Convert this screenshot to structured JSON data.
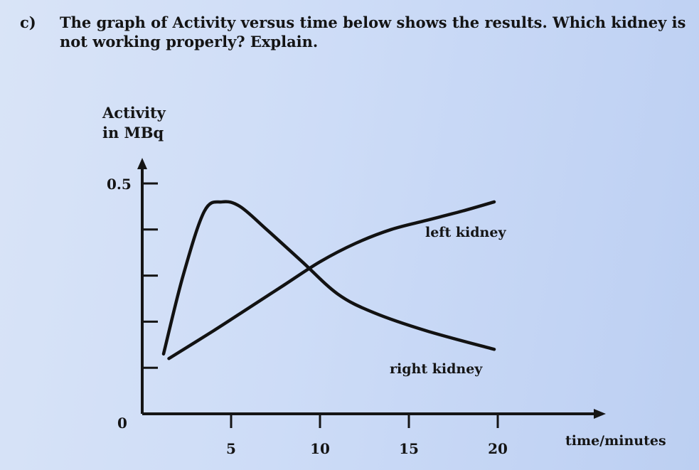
{
  "question": {
    "label": "c)",
    "text": "The graph of Activity versus time below shows the results. Which kidney is not working properly? Explain."
  },
  "chart_data": {
    "type": "line",
    "ylabel_line1": "Activity",
    "ylabel_line2": "in MBq",
    "xlabel": "time/minutes",
    "origin_label": "0",
    "xlim": [
      0,
      25
    ],
    "ylim": [
      0,
      0.5
    ],
    "x_ticks": [
      5,
      10,
      15,
      20
    ],
    "x_tick_labels": [
      "5",
      "10",
      "15",
      "20"
    ],
    "y_ticks": [
      0.1,
      0.2,
      0.3,
      0.4,
      0.5
    ],
    "y_tick_labels": [
      "0.5"
    ],
    "series": [
      {
        "name": "right kidney",
        "x": [
          1.2,
          2.3,
          3.5,
          4.5,
          5.5,
          7,
          9,
          11,
          13,
          16,
          19.8
        ],
        "y": [
          0.13,
          0.3,
          0.44,
          0.46,
          0.45,
          0.4,
          0.33,
          0.26,
          0.22,
          0.18,
          0.14
        ]
      },
      {
        "name": "left kidney",
        "x": [
          1.5,
          4,
          6,
          8,
          10,
          12,
          14,
          16,
          18,
          19.8
        ],
        "y": [
          0.12,
          0.18,
          0.23,
          0.28,
          0.33,
          0.37,
          0.4,
          0.42,
          0.44,
          0.46
        ]
      }
    ]
  }
}
